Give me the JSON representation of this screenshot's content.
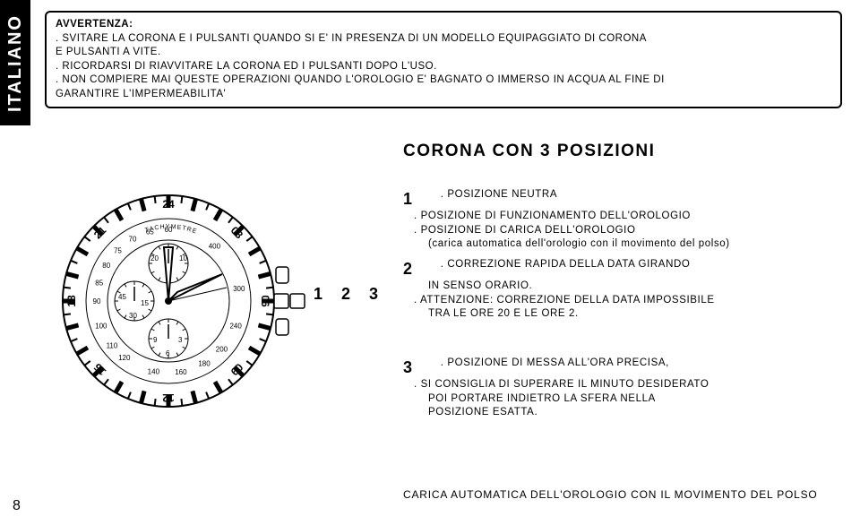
{
  "lang_tab": "ITALIANO",
  "warning": {
    "title": "AVVERTENZA:",
    "lines": [
      ". SVITARE LA CORONA E I PULSANTI QUANDO SI E' IN PRESENZA DI UN MODELLO EQUIPAGGIATO DI CORONA",
      "  E PULSANTI A VITE.",
      ". RICORDARSI DI RIAVVITARE LA CORONA ED I PULSANTI DOPO L'USO.",
      ". NON COMPIERE MAI QUESTE OPERAZIONI QUANDO L'OROLOGIO E' BAGNATO O IMMERSO IN ACQUA AL FINE DI",
      "  GARANTIRE L'IMPERMEABILITA'"
    ]
  },
  "section_title": "CORONA CON 3 POSIZIONI",
  "crown_positions": "1 2 3",
  "pos1": {
    "num": "1",
    "b1": "POSIZIONE NEUTRA",
    "b2": "POSIZIONE DI FUNZIONAMENTO DELL'OROLOGIO",
    "b3": "POSIZIONE DI CARICA DELL'OROLOGIO",
    "b3sub": "(carica automatica dell'orologio con il movimento del polso)"
  },
  "pos2": {
    "num": "2",
    "b1": "CORREZIONE RAPIDA DELLA DATA GIRANDO",
    "b1b": "IN SENSO ORARIO.",
    "b2": "ATTENZIONE: CORREZIONE DELLA DATA IMPOSSIBILE",
    "b2b": "TRA LE ORE 20 E LE ORE 2."
  },
  "pos3": {
    "num": "3",
    "b1": "POSIZIONE DI MESSA ALL'ORA PRECISA,",
    "b2": "SI CONSIGLIA DI SUPERARE IL MINUTO DESIDERATO",
    "b2b": "POI PORTARE INDIETRO LA SFERA NELLA",
    "b2c": "POSIZIONE ESATTA."
  },
  "footer": "CARICA AUTOMATICA DELL'OROLOGIO CON IL MOVIMENTO DEL POLSO",
  "page_number": "8",
  "watch": {
    "tachy_label": "TACHYMETRE",
    "tachy_numbers": [
      "60",
      "65",
      "70",
      "75",
      "80",
      "85",
      "90",
      "100",
      "110",
      "120",
      "140",
      "160",
      "180",
      "200",
      "240",
      "300",
      "400"
    ],
    "bezel_numbers": [
      "24",
      "03",
      "06",
      "09",
      "12",
      "15",
      "18",
      "21"
    ],
    "subdial_top": [
      "10",
      "20"
    ],
    "subdial_left": [
      "15",
      "30",
      "45"
    ],
    "subdial_bottom": [
      "3",
      "6",
      "9"
    ],
    "stroke": "#000000",
    "fill": "#ffffff"
  }
}
